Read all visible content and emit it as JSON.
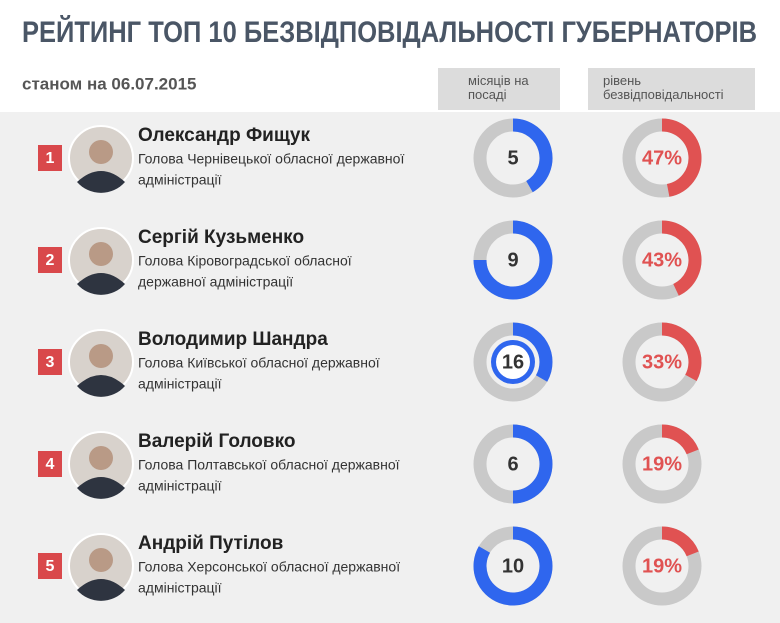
{
  "title": "РЕЙТИНГ ТОП 10 БЕЗВІДПОВІДАЛЬНОСТІ ГУБЕРНАТОРІВ",
  "date": "станом на 06.07.2015",
  "headers": {
    "months": "місяців на посаді",
    "percent": "рівень безвідповідальності"
  },
  "months_lim": [
    0,
    12
  ],
  "percent_lim": [
    0,
    100
  ],
  "colors": {
    "months": "#2f66ee",
    "percent": "#e05252",
    "ring": "#c9c9c9",
    "rank": "#d9484b"
  },
  "rows": [
    {
      "rank": 1,
      "name": "Олександр Фищук",
      "position": [
        "Голова Чернівецької обласної державної",
        "адміністрації"
      ],
      "months": 5,
      "percent": 47,
      "percent_label": "47%"
    },
    {
      "rank": 2,
      "name": "Сергій Кузьменко",
      "position": [
        "Голова Кіровоградської обласної",
        "державної адміністрації"
      ],
      "months": 9,
      "percent": 43,
      "percent_label": "43%"
    },
    {
      "rank": 3,
      "name": "Володимир Шандра",
      "position": [
        "Голова Київської обласної державної",
        "адміністрації"
      ],
      "months": 16,
      "percent": 33,
      "percent_label": "33%"
    },
    {
      "rank": 4,
      "name": "Валерій Головко",
      "position": [
        "Голова Полтавської обласної державної",
        "адміністрації"
      ],
      "months": 6,
      "percent": 19,
      "percent_label": "19%"
    },
    {
      "rank": 5,
      "name": "Андрій Путілов",
      "position": [
        "Голова Херсонської обласної державної",
        "адміністрації"
      ],
      "months": 10,
      "percent": 19,
      "percent_label": "19%"
    }
  ]
}
